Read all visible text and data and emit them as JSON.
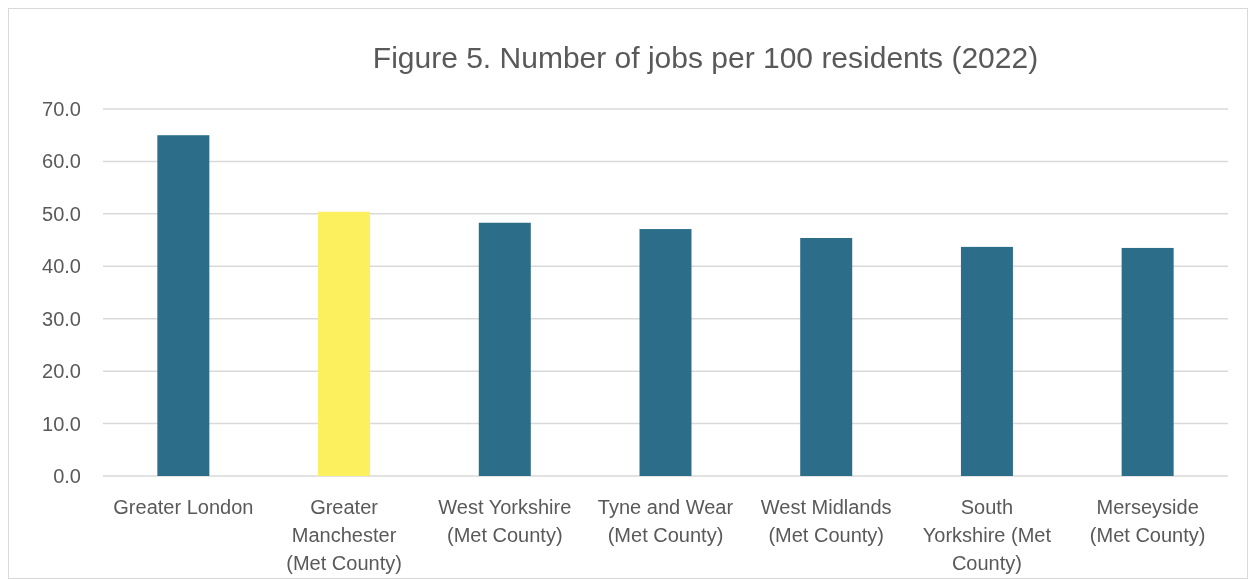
{
  "chart_data": {
    "type": "bar",
    "title": "Figure 5. Number of jobs per 100 residents (2022)",
    "categories": [
      "Greater London",
      "Greater Manchester (Met County)",
      "West Yorkshire (Met County)",
      "Tyne and Wear (Met County)",
      "West Midlands (Met County)",
      "South Yorkshire (Met County)",
      "Merseyside (Met County)"
    ],
    "values": [
      65.0,
      50.4,
      48.3,
      47.1,
      45.4,
      43.7,
      43.5
    ],
    "colors": [
      "#2c6e89",
      "#fcf05f",
      "#2c6e89",
      "#2c6e89",
      "#2c6e89",
      "#2c6e89",
      "#2c6e89"
    ],
    "ylim": [
      0,
      70
    ],
    "yticks": [
      {
        "value": 0,
        "label": "0.0"
      },
      {
        "value": 10,
        "label": "10.0"
      },
      {
        "value": 20,
        "label": "20.0"
      },
      {
        "value": 30,
        "label": "30.0"
      },
      {
        "value": 40,
        "label": "40.0"
      },
      {
        "value": 50,
        "label": "50.0"
      },
      {
        "value": 60,
        "label": "60.0"
      },
      {
        "value": 70,
        "label": "70.0"
      }
    ],
    "grid": "y"
  }
}
